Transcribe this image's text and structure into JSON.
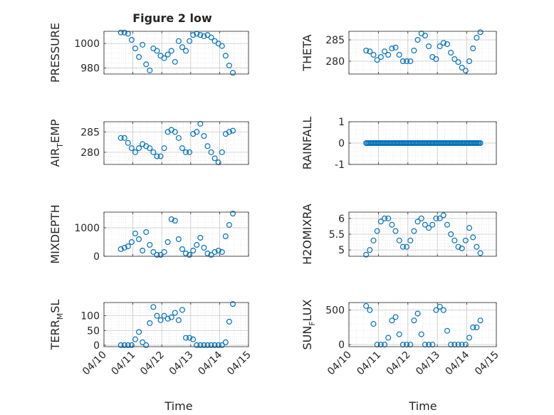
{
  "figure": {
    "title": "Figure 2 low",
    "xlabel": "Time"
  },
  "chart_data": [
    {
      "type": "scatter",
      "ylabel": "PRESSURE",
      "ylim": [
        975,
        1010
      ],
      "yticks": [
        980,
        1000
      ],
      "ytick_labels": [
        "980",
        "1000"
      ],
      "x": [
        "04/10 14:00",
        "04/10 17:00",
        "04/10 20:00",
        "04/10 23:00",
        "04/11 02:00",
        "04/11 05:00",
        "04/11 08:00",
        "04/11 11:00",
        "04/11 14:00",
        "04/11 17:00",
        "04/11 20:00",
        "04/11 23:00",
        "04/12 02:00",
        "04/12 05:00",
        "04/12 08:00",
        "04/12 11:00",
        "04/12 14:00",
        "04/12 17:00",
        "04/12 20:00",
        "04/12 23:00",
        "04/13 02:00",
        "04/13 05:00",
        "04/13 08:00",
        "04/13 11:00",
        "04/13 14:00",
        "04/13 17:00",
        "04/13 20:00",
        "04/13 23:00",
        "04/14 02:00",
        "04/14 05:00",
        "04/14 08:00",
        "04/14 11:00"
      ],
      "y": [
        1009,
        1009,
        1008,
        1003,
        996,
        989,
        999,
        983,
        978,
        996,
        994,
        990,
        988,
        991,
        994,
        985,
        1002,
        997,
        994,
        1002,
        1007,
        1008,
        1007,
        1006,
        1007,
        1005,
        1002,
        1000,
        998,
        990,
        982,
        976
      ]
    },
    {
      "type": "scatter",
      "ylabel": "THETA",
      "ylim": [
        277,
        287
      ],
      "yticks": [
        280,
        285
      ],
      "ytick_labels": [
        "280",
        "285"
      ],
      "x": [
        "04/10 14:00",
        "04/10 17:00",
        "04/10 20:00",
        "04/10 23:00",
        "04/11 02:00",
        "04/11 05:00",
        "04/11 08:00",
        "04/11 11:00",
        "04/11 14:00",
        "04/11 17:00",
        "04/11 20:00",
        "04/11 23:00",
        "04/12 02:00",
        "04/12 05:00",
        "04/12 08:00",
        "04/12 11:00",
        "04/12 14:00",
        "04/12 17:00",
        "04/12 20:00",
        "04/12 23:00",
        "04/13 02:00",
        "04/13 05:00",
        "04/13 08:00",
        "04/13 11:00",
        "04/13 14:00",
        "04/13 17:00",
        "04/13 20:00",
        "04/13 23:00",
        "04/14 02:00",
        "04/14 05:00",
        "04/14 08:00",
        "04/14 11:00"
      ],
      "y": [
        282.5,
        282.3,
        281.5,
        280.3,
        281,
        282.3,
        281.5,
        283,
        283.2,
        281.5,
        280,
        280,
        280,
        282.5,
        285,
        286.5,
        286,
        283.5,
        281,
        280.5,
        283.5,
        284.3,
        284,
        282,
        280.5,
        279.8,
        278.5,
        277.8,
        280,
        283,
        285.5,
        286.8
      ]
    },
    {
      "type": "scatter",
      "ylabel": "AIR_TEMP",
      "ylim": [
        277,
        287.5
      ],
      "yticks": [
        280,
        285
      ],
      "ytick_labels": [
        "280",
        "285"
      ],
      "x": [
        "04/10 14:00",
        "04/10 17:00",
        "04/10 20:00",
        "04/10 23:00",
        "04/11 02:00",
        "04/11 05:00",
        "04/11 08:00",
        "04/11 11:00",
        "04/11 14:00",
        "04/11 17:00",
        "04/11 20:00",
        "04/11 23:00",
        "04/12 02:00",
        "04/12 05:00",
        "04/12 08:00",
        "04/12 11:00",
        "04/12 14:00",
        "04/12 17:00",
        "04/12 20:00",
        "04/12 23:00",
        "04/13 02:00",
        "04/13 05:00",
        "04/13 08:00",
        "04/13 11:00",
        "04/13 14:00",
        "04/13 17:00",
        "04/13 20:00",
        "04/13 23:00",
        "04/14 02:00",
        "04/14 05:00",
        "04/14 08:00",
        "04/14 11:00"
      ],
      "y": [
        283.5,
        283.5,
        282.3,
        281,
        280,
        281,
        282,
        281.5,
        281,
        280,
        279,
        279,
        281,
        285,
        285.5,
        285,
        283.5,
        281,
        280,
        280,
        284.5,
        285,
        287,
        284,
        281.5,
        280,
        278.5,
        277.5,
        280,
        284.5,
        285,
        285.3
      ]
    },
    {
      "type": "scatter",
      "ylabel": "RAINFALL",
      "ylim": [
        -1,
        1
      ],
      "yticks": [
        -1,
        0,
        1
      ],
      "ytick_labels": [
        "-1",
        "0",
        "1"
      ],
      "x_range": [
        "04/10 14:00",
        "04/14 11:00"
      ],
      "y_constant": 0,
      "points": 96
    },
    {
      "type": "scatter",
      "ylabel": "MIXDEPTH",
      "ylim": [
        0,
        1550
      ],
      "yticks": [
        0,
        1000
      ],
      "ytick_labels": [
        "0",
        "1000"
      ],
      "x": [
        "04/10 14:00",
        "04/10 17:00",
        "04/10 20:00",
        "04/10 23:00",
        "04/11 02:00",
        "04/11 05:00",
        "04/11 08:00",
        "04/11 11:00",
        "04/11 14:00",
        "04/11 17:00",
        "04/11 20:00",
        "04/11 23:00",
        "04/12 02:00",
        "04/12 05:00",
        "04/12 08:00",
        "04/12 11:00",
        "04/12 14:00",
        "04/12 17:00",
        "04/12 20:00",
        "04/12 23:00",
        "04/13 02:00",
        "04/13 05:00",
        "04/13 08:00",
        "04/13 11:00",
        "04/13 14:00",
        "04/13 17:00",
        "04/13 20:00",
        "04/13 23:00",
        "04/14 02:00",
        "04/14 05:00",
        "04/14 08:00",
        "04/14 11:00"
      ],
      "y": [
        250,
        300,
        350,
        500,
        800,
        600,
        200,
        850,
        400,
        150,
        50,
        50,
        150,
        500,
        1300,
        1250,
        600,
        250,
        100,
        50,
        200,
        400,
        650,
        300,
        100,
        50,
        150,
        200,
        150,
        700,
        1100,
        1500
      ]
    },
    {
      "type": "scatter",
      "ylabel": "H2OMIXRA",
      "ylim": [
        4.8,
        6.2
      ],
      "yticks": [
        5,
        5.5,
        6
      ],
      "ytick_labels": [
        "5",
        "5.5",
        "6"
      ],
      "x": [
        "04/10 14:00",
        "04/10 17:00",
        "04/10 20:00",
        "04/10 23:00",
        "04/11 02:00",
        "04/11 05:00",
        "04/11 08:00",
        "04/11 11:00",
        "04/11 14:00",
        "04/11 17:00",
        "04/11 20:00",
        "04/11 23:00",
        "04/12 02:00",
        "04/12 05:00",
        "04/12 08:00",
        "04/12 11:00",
        "04/12 14:00",
        "04/12 17:00",
        "04/12 20:00",
        "04/12 23:00",
        "04/13 02:00",
        "04/13 05:00",
        "04/13 08:00",
        "04/13 11:00",
        "04/13 14:00",
        "04/13 17:00",
        "04/13 20:00",
        "04/13 23:00",
        "04/14 02:00",
        "04/14 05:00",
        "04/14 08:00",
        "04/14 11:00"
      ],
      "y": [
        4.85,
        5,
        5.3,
        5.6,
        5.9,
        6,
        6,
        5.8,
        5.6,
        5.3,
        5.1,
        5.1,
        5.3,
        5.6,
        5.9,
        6,
        5.8,
        5.7,
        5.8,
        6,
        6,
        6.1,
        5.8,
        5.5,
        5.3,
        5.1,
        5.05,
        5.3,
        5.7,
        5.4,
        5.1,
        4.9
      ]
    },
    {
      "type": "scatter",
      "ylabel": "TERR_MSL",
      "ylim": [
        -5,
        145
      ],
      "yticks": [
        0,
        50,
        100
      ],
      "ytick_labels": [
        "0",
        "50",
        "100"
      ],
      "x": [
        "04/10 14:00",
        "04/10 17:00",
        "04/10 20:00",
        "04/10 23:00",
        "04/11 02:00",
        "04/11 05:00",
        "04/11 08:00",
        "04/11 11:00",
        "04/11 14:00",
        "04/11 17:00",
        "04/11 20:00",
        "04/11 23:00",
        "04/12 02:00",
        "04/12 05:00",
        "04/12 08:00",
        "04/12 11:00",
        "04/12 14:00",
        "04/12 17:00",
        "04/12 20:00",
        "04/12 23:00",
        "04/13 02:00",
        "04/13 05:00",
        "04/13 08:00",
        "04/13 11:00",
        "04/13 14:00",
        "04/13 17:00",
        "04/13 20:00",
        "04/13 23:00",
        "04/14 02:00",
        "04/14 05:00",
        "04/14 08:00",
        "04/14 11:00"
      ],
      "y": [
        0,
        0,
        0,
        0,
        20,
        45,
        10,
        0,
        75,
        130,
        100,
        85,
        100,
        90,
        95,
        110,
        85,
        120,
        25,
        25,
        20,
        0,
        0,
        0,
        0,
        0,
        0,
        0,
        0,
        10,
        80,
        140
      ]
    },
    {
      "type": "scatter",
      "ylabel": "SUN_FLUX",
      "ylim": [
        -30,
        610
      ],
      "yticks": [
        0,
        500
      ],
      "ytick_labels": [
        "0",
        "500"
      ],
      "x": [
        "04/10 14:00",
        "04/10 17:00",
        "04/10 20:00",
        "04/10 23:00",
        "04/11 02:00",
        "04/11 05:00",
        "04/11 08:00",
        "04/11 11:00",
        "04/11 14:00",
        "04/11 17:00",
        "04/11 20:00",
        "04/11 23:00",
        "04/12 02:00",
        "04/12 05:00",
        "04/12 08:00",
        "04/12 11:00",
        "04/12 14:00",
        "04/12 17:00",
        "04/12 20:00",
        "04/12 23:00",
        "04/13 02:00",
        "04/13 05:00",
        "04/13 08:00",
        "04/13 11:00",
        "04/13 14:00",
        "04/13 17:00",
        "04/13 20:00",
        "04/13 23:00",
        "04/14 02:00",
        "04/14 05:00",
        "04/14 08:00",
        "04/14 11:00"
      ],
      "y": [
        560,
        500,
        300,
        0,
        0,
        0,
        100,
        350,
        400,
        150,
        0,
        0,
        0,
        350,
        450,
        150,
        0,
        0,
        0,
        500,
        550,
        500,
        200,
        0,
        0,
        0,
        0,
        0,
        100,
        250,
        250,
        350
      ]
    }
  ],
  "xaxis": {
    "ticks": [
      "04/10 00:00",
      "04/11 00:00",
      "04/12 00:00",
      "04/13 00:00",
      "04/14 00:00",
      "04/15 00:00"
    ],
    "labels": [
      "04/10",
      "04/11",
      "04/12",
      "04/13",
      "04/14",
      "04/15"
    ],
    "range": [
      "04/10 00:00",
      "04/15 00:00"
    ]
  },
  "style": {
    "marker_color": "#0072BD",
    "grid": "on (major and minor, dotted)",
    "box": "on"
  }
}
